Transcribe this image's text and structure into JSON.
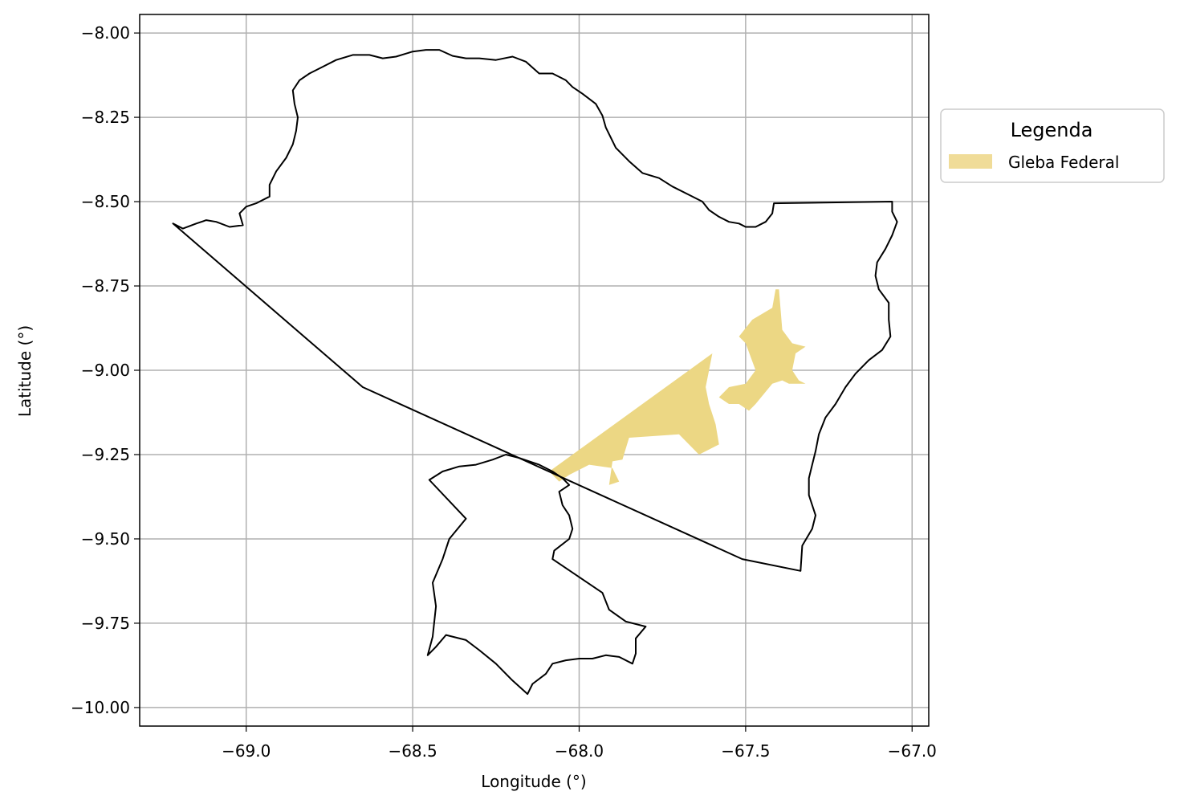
{
  "chart_data": {
    "type": "map",
    "xlabel": "Longitude (°)",
    "ylabel": "Latitude (°)",
    "xlim": [
      -69.32,
      -66.95
    ],
    "ylim": [
      -10.055,
      -7.945
    ],
    "x_ticks": [
      -69.0,
      -68.5,
      -68.0,
      -67.5,
      -67.0
    ],
    "x_tick_labels": [
      "−69.0",
      "−68.5",
      "−68.0",
      "−67.5",
      "−67.0"
    ],
    "y_ticks": [
      -8.0,
      -8.25,
      -8.5,
      -8.75,
      -9.0,
      -9.25,
      -9.5,
      -9.75,
      -10.0
    ],
    "y_tick_labels": [
      "−8.00",
      "−8.25",
      "−8.50",
      "−8.75",
      "−9.00",
      "−9.25",
      "−9.50",
      "−9.75",
      "−10.00"
    ],
    "grid": true,
    "legend": {
      "title": "Legenda",
      "placement": "outside-upper-right",
      "entries": [
        {
          "label": "Gleba Federal",
          "color": "#f0dc98"
        }
      ]
    },
    "colors": {
      "boundary": "#000000",
      "gleba_fill": "#ecd784",
      "grid": "#b0b0b0"
    },
    "layers": {
      "north_boundary": [
        [
          -69.22,
          -8.565
        ],
        [
          -69.19,
          -8.58
        ],
        [
          -69.15,
          -8.565
        ],
        [
          -69.12,
          -8.555
        ],
        [
          -69.09,
          -8.56
        ],
        [
          -69.05,
          -8.575
        ],
        [
          -69.01,
          -8.57
        ],
        [
          -69.02,
          -8.535
        ],
        [
          -69.0,
          -8.515
        ],
        [
          -68.97,
          -8.505
        ],
        [
          -68.93,
          -8.485
        ],
        [
          -68.93,
          -8.45
        ],
        [
          -68.91,
          -8.41
        ],
        [
          -68.88,
          -8.37
        ],
        [
          -68.86,
          -8.33
        ],
        [
          -68.85,
          -8.29
        ],
        [
          -68.845,
          -8.25
        ],
        [
          -68.855,
          -8.21
        ],
        [
          -68.86,
          -8.17
        ],
        [
          -68.84,
          -8.14
        ],
        [
          -68.81,
          -8.12
        ],
        [
          -68.77,
          -8.1
        ],
        [
          -68.73,
          -8.08
        ],
        [
          -68.68,
          -8.065
        ],
        [
          -68.63,
          -8.065
        ],
        [
          -68.59,
          -8.075
        ],
        [
          -68.55,
          -8.07
        ],
        [
          -68.5,
          -8.055
        ],
        [
          -68.46,
          -8.05
        ],
        [
          -68.42,
          -8.05
        ],
        [
          -68.38,
          -8.068
        ],
        [
          -68.34,
          -8.075
        ],
        [
          -68.3,
          -8.075
        ],
        [
          -68.25,
          -8.08
        ],
        [
          -68.2,
          -8.07
        ],
        [
          -68.16,
          -8.085
        ],
        [
          -68.12,
          -8.12
        ],
        [
          -68.08,
          -8.12
        ],
        [
          -68.04,
          -8.14
        ],
        [
          -68.02,
          -8.16
        ],
        [
          -67.99,
          -8.18
        ],
        [
          -67.95,
          -8.21
        ],
        [
          -67.93,
          -8.245
        ],
        [
          -67.92,
          -8.28
        ],
        [
          -67.89,
          -8.34
        ],
        [
          -67.85,
          -8.38
        ],
        [
          -67.81,
          -8.415
        ],
        [
          -67.76,
          -8.43
        ],
        [
          -67.72,
          -8.455
        ],
        [
          -67.67,
          -8.48
        ],
        [
          -67.63,
          -8.5
        ],
        [
          -67.61,
          -8.525
        ],
        [
          -67.58,
          -8.545
        ],
        [
          -67.55,
          -8.56
        ],
        [
          -67.52,
          -8.565
        ],
        [
          -67.5,
          -8.575
        ],
        [
          -67.47,
          -8.575
        ],
        [
          -67.44,
          -8.56
        ],
        [
          -67.42,
          -8.535
        ],
        [
          -67.415,
          -8.505
        ],
        [
          -67.06,
          -8.5
        ],
        [
          -67.06,
          -8.53
        ],
        [
          -67.045,
          -8.56
        ],
        [
          -67.06,
          -8.6
        ],
        [
          -67.08,
          -8.64
        ],
        [
          -67.105,
          -8.68
        ],
        [
          -67.11,
          -8.72
        ],
        [
          -67.1,
          -8.76
        ],
        [
          -67.07,
          -8.8
        ],
        [
          -67.07,
          -8.85
        ],
        [
          -67.065,
          -8.9
        ],
        [
          -67.09,
          -8.94
        ],
        [
          -67.13,
          -8.97
        ],
        [
          -67.17,
          -9.01
        ],
        [
          -67.2,
          -9.05
        ],
        [
          -67.23,
          -9.1
        ],
        [
          -67.26,
          -9.14
        ],
        [
          -67.28,
          -9.19
        ],
        [
          -67.29,
          -9.24
        ],
        [
          -67.3,
          -9.28
        ],
        [
          -67.31,
          -9.32
        ],
        [
          -67.31,
          -9.37
        ],
        [
          -67.29,
          -9.43
        ],
        [
          -67.3,
          -9.47
        ],
        [
          -67.33,
          -9.52
        ],
        [
          -67.335,
          -9.595
        ],
        [
          -67.51,
          -9.56
        ],
        [
          -68.65,
          -9.05
        ],
        [
          -69.22,
          -8.565
        ]
      ],
      "south_boundary": [
        [
          -68.45,
          -9.325
        ],
        [
          -68.41,
          -9.3
        ],
        [
          -68.36,
          -9.285
        ],
        [
          -68.31,
          -9.28
        ],
        [
          -68.26,
          -9.265
        ],
        [
          -68.22,
          -9.25
        ],
        [
          -68.18,
          -9.26
        ],
        [
          -68.12,
          -9.28
        ],
        [
          -68.08,
          -9.3
        ],
        [
          -68.05,
          -9.32
        ],
        [
          -68.03,
          -9.34
        ],
        [
          -68.06,
          -9.36
        ],
        [
          -68.05,
          -9.4
        ],
        [
          -68.03,
          -9.43
        ],
        [
          -68.02,
          -9.47
        ],
        [
          -68.03,
          -9.5
        ],
        [
          -68.075,
          -9.535
        ],
        [
          -68.08,
          -9.56
        ],
        [
          -67.93,
          -9.66
        ],
        [
          -67.91,
          -9.71
        ],
        [
          -67.86,
          -9.745
        ],
        [
          -67.8,
          -9.76
        ],
        [
          -67.83,
          -9.795
        ],
        [
          -67.83,
          -9.84
        ],
        [
          -67.84,
          -9.87
        ],
        [
          -67.88,
          -9.85
        ],
        [
          -67.92,
          -9.845
        ],
        [
          -67.96,
          -9.855
        ],
        [
          -68.0,
          -9.855
        ],
        [
          -68.04,
          -9.86
        ],
        [
          -68.08,
          -9.87
        ],
        [
          -68.1,
          -9.9
        ],
        [
          -68.14,
          -9.93
        ],
        [
          -68.155,
          -9.96
        ],
        [
          -68.2,
          -9.92
        ],
        [
          -68.25,
          -9.87
        ],
        [
          -68.3,
          -9.83
        ],
        [
          -68.34,
          -9.8
        ],
        [
          -68.4,
          -9.785
        ],
        [
          -68.43,
          -9.82
        ],
        [
          -68.455,
          -9.845
        ],
        [
          -68.44,
          -9.79
        ],
        [
          -68.43,
          -9.7
        ],
        [
          -68.44,
          -9.63
        ],
        [
          -68.41,
          -9.56
        ],
        [
          -68.39,
          -9.5
        ],
        [
          -68.34,
          -9.44
        ],
        [
          -68.45,
          -9.325
        ]
      ],
      "gleba_federal": [
        [
          -68.09,
          -9.3
        ],
        [
          -67.6,
          -8.95
        ],
        [
          -67.61,
          -9.0
        ],
        [
          -67.62,
          -9.05
        ],
        [
          -67.61,
          -9.1
        ],
        [
          -67.59,
          -9.16
        ],
        [
          -67.58,
          -9.22
        ],
        [
          -67.64,
          -9.25
        ],
        [
          -67.7,
          -9.19
        ],
        [
          -67.85,
          -9.2
        ],
        [
          -67.87,
          -9.265
        ],
        [
          -67.9,
          -9.27
        ],
        [
          -67.91,
          -9.34
        ],
        [
          -67.88,
          -9.33
        ],
        [
          -67.9,
          -9.29
        ],
        [
          -67.97,
          -9.28
        ],
        [
          -68.03,
          -9.31
        ],
        [
          -68.06,
          -9.33
        ],
        [
          -68.09,
          -9.3
        ]
      ],
      "gleba_federal_east": [
        [
          -67.58,
          -9.08
        ],
        [
          -67.55,
          -9.05
        ],
        [
          -67.5,
          -9.04
        ],
        [
          -67.47,
          -9.0
        ],
        [
          -67.5,
          -8.92
        ],
        [
          -67.52,
          -8.9
        ],
        [
          -67.48,
          -8.85
        ],
        [
          -67.42,
          -8.815
        ],
        [
          -67.41,
          -8.76
        ],
        [
          -67.4,
          -8.76
        ],
        [
          -67.39,
          -8.88
        ],
        [
          -67.36,
          -8.92
        ],
        [
          -67.32,
          -8.93
        ],
        [
          -67.35,
          -8.95
        ],
        [
          -67.36,
          -9.0
        ],
        [
          -67.34,
          -9.03
        ],
        [
          -67.32,
          -9.04
        ],
        [
          -67.37,
          -9.04
        ],
        [
          -67.39,
          -9.03
        ],
        [
          -67.42,
          -9.04
        ],
        [
          -67.47,
          -9.1
        ],
        [
          -67.49,
          -9.12
        ],
        [
          -67.52,
          -9.1
        ],
        [
          -67.55,
          -9.1
        ],
        [
          -67.58,
          -9.08
        ]
      ]
    }
  }
}
